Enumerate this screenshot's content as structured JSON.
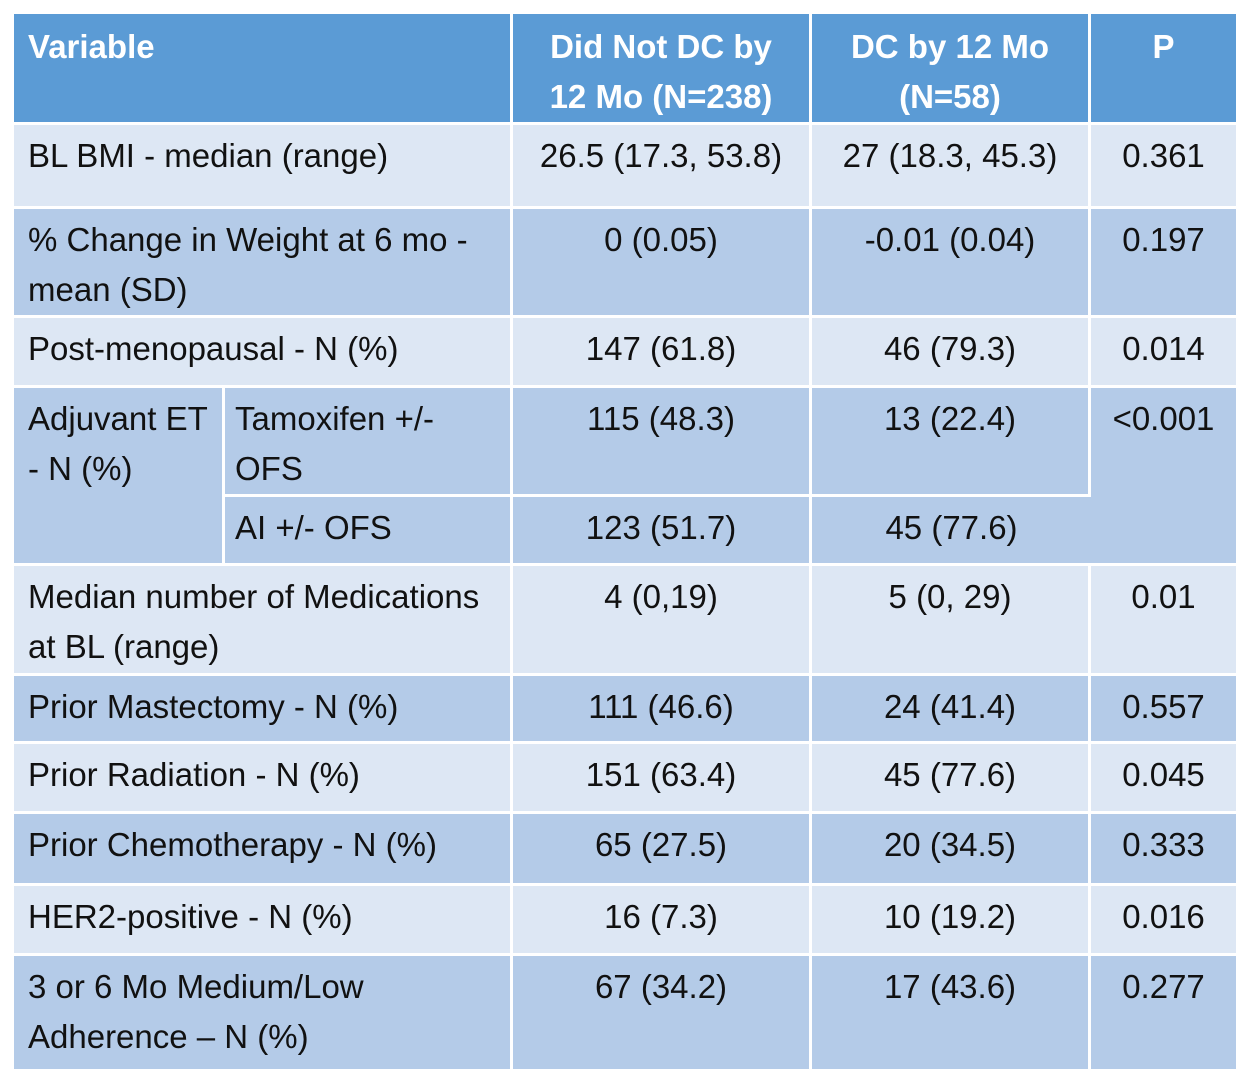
{
  "table": {
    "headers": [
      "Variable",
      "Did Not DC by 12 Mo (N=238)",
      "DC by 12 Mo (N=58)",
      "P"
    ],
    "header_lines": {
      "variable": "Variable",
      "col1_line1": "Did Not DC by",
      "col1_line2": "12 Mo (N=238)",
      "col2_line1": "DC by 12 Mo",
      "col2_line2": "(N=58)",
      "p": "P"
    },
    "rows": [
      {
        "variable": "BL BMI - median (range)",
        "did_not_dc": "26.5 (17.3, 53.8)",
        "dc": "27 (18.3, 45.3)",
        "p": "0.361"
      },
      {
        "variable": "% Change in Weight at 6 mo - mean (SD)",
        "did_not_dc": "0 (0.05)",
        "dc": "-0.01 (0.04)",
        "p": "0.197"
      },
      {
        "variable": "Post-menopausal - N (%)",
        "did_not_dc": "147 (61.8)",
        "dc": "46 (79.3)",
        "p": "0.014"
      },
      {
        "variable": "Adjuvant ET - N (%)",
        "p": "<0.001",
        "subrows": [
          {
            "sub": "Tamoxifen +/- OFS",
            "did_not_dc": "115 (48.3)",
            "dc": "13 (22.4)"
          },
          {
            "sub": "AI +/- OFS",
            "did_not_dc": "123 (51.7)",
            "dc": "45 (77.6)"
          }
        ]
      },
      {
        "variable": "Median number of Medications at BL (range)",
        "did_not_dc": "4 (0,19)",
        "dc": "5 (0, 29)",
        "p": "0.01"
      },
      {
        "variable": "Prior Mastectomy - N (%)",
        "did_not_dc": "111 (46.6)",
        "dc": "24 (41.4)",
        "p": "0.557"
      },
      {
        "variable": "Prior Radiation - N (%)",
        "did_not_dc": "151 (63.4)",
        "dc": "45 (77.6)",
        "p": "0.045"
      },
      {
        "variable": "Prior Chemotherapy - N (%)",
        "did_not_dc": "65 (27.5)",
        "dc": "20 (34.5)",
        "p": "0.333"
      },
      {
        "variable": "HER2-positive - N (%)",
        "did_not_dc": "16 (7.3)",
        "dc": "10 (19.2)",
        "p": "0.016"
      },
      {
        "variable": "3 or 6 Mo Medium/Low Adherence – N (%)",
        "did_not_dc": "67 (34.2)",
        "dc": "17 (43.6)",
        "p": "0.277"
      }
    ],
    "colors": {
      "header": "#5b9bd5",
      "row_light": "#dde7f4",
      "row_dark": "#b4cbe8",
      "border": "#ffffff"
    }
  }
}
